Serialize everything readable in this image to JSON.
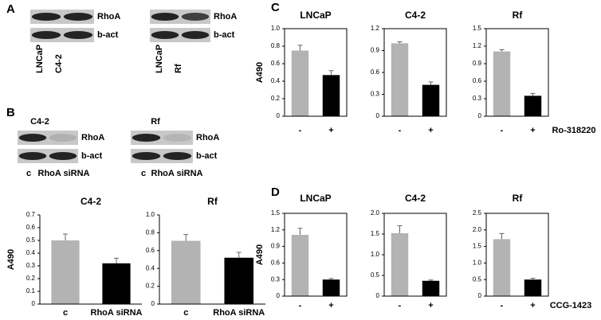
{
  "panel_labels": [
    "A",
    "B",
    "C",
    "D"
  ],
  "blots": [
    {
      "rows": [
        "RhoA",
        "b-act"
      ],
      "lanes": [
        "LNCaP",
        "C4-2"
      ]
    },
    {
      "rows": [
        "RhoA",
        "b-act"
      ],
      "lanes": [
        "LNCaP",
        "Rf"
      ]
    },
    {
      "title": "C4-2",
      "rows": [
        "RhoA",
        "b-act"
      ],
      "lanes": [
        "c",
        "RhoA siRNA"
      ]
    },
    {
      "title": "Rf",
      "rows": [
        "RhoA",
        "b-act"
      ],
      "lanes": [
        "c",
        "RhoA siRNA"
      ]
    }
  ],
  "chart_data": [
    {
      "type": "bar",
      "title": "C4-2",
      "ylabel": "A490",
      "categories": [
        "c",
        "RhoA siRNA"
      ],
      "values": [
        0.5,
        0.32
      ],
      "errors": [
        0.05,
        0.04
      ],
      "colors": [
        "#b3b3b3",
        "#000000"
      ],
      "ylim": [
        0,
        0.7
      ],
      "yticks": [
        0,
        0.1,
        0.2,
        0.3,
        0.4,
        0.5,
        0.6,
        0.7
      ],
      "box": false
    },
    {
      "type": "bar",
      "title": "Rf",
      "categories": [
        "c",
        "RhoA siRNA"
      ],
      "values": [
        0.71,
        0.52
      ],
      "errors": [
        0.07,
        0.06
      ],
      "colors": [
        "#b3b3b3",
        "#000000"
      ],
      "ylim": [
        0,
        1.0
      ],
      "yticks": [
        0,
        0.2,
        0.4,
        0.6,
        0.8,
        {
          "value": 1.0,
          "label": "1.0"
        }
      ],
      "box": false
    },
    {
      "type": "bar",
      "title": "LNCaP",
      "ylabel": "A490",
      "categories": [
        "-",
        "+"
      ],
      "values": [
        0.75,
        0.47
      ],
      "errors": [
        0.06,
        0.05
      ],
      "colors": [
        "#b3b3b3",
        "#000000"
      ],
      "ylim": [
        0,
        1.0
      ],
      "yticks": [
        0,
        0.2,
        0.4,
        0.6,
        0.8,
        {
          "value": 1.0,
          "label": "1.0"
        }
      ],
      "box": true
    },
    {
      "type": "bar",
      "title": "C4-2",
      "categories": [
        "-",
        "+"
      ],
      "values": [
        1.0,
        0.43
      ],
      "errors": [
        0.02,
        0.04
      ],
      "colors": [
        "#b3b3b3",
        "#000000"
      ],
      "ylim": [
        0,
        1.2
      ],
      "yticks": [
        0,
        0.3,
        0.6,
        0.9,
        1.2
      ],
      "box": true
    },
    {
      "type": "bar",
      "title": "Rf",
      "xlabel": "Ro-318220",
      "categories": [
        "-",
        "+"
      ],
      "values": [
        1.11,
        0.35
      ],
      "errors": [
        0.03,
        0.04
      ],
      "colors": [
        "#b3b3b3",
        "#000000"
      ],
      "ylim": [
        0,
        1.5
      ],
      "yticks": [
        0,
        0.3,
        0.6,
        0.9,
        1.2,
        1.5
      ],
      "box": true
    },
    {
      "type": "bar",
      "title": "LNCaP",
      "ylabel": "A490",
      "categories": [
        "-",
        "+"
      ],
      "values": [
        1.11,
        0.3
      ],
      "errors": [
        0.12,
        0.02
      ],
      "colors": [
        "#b3b3b3",
        "#000000"
      ],
      "ylim": [
        0,
        1.5
      ],
      "yticks": [
        0,
        0.3,
        0.6,
        0.9,
        1.2,
        1.5
      ],
      "box": true
    },
    {
      "type": "bar",
      "title": "C4-2",
      "categories": [
        "-",
        "+"
      ],
      "values": [
        1.52,
        0.37
      ],
      "errors": [
        0.18,
        0.02
      ],
      "colors": [
        "#b3b3b3",
        "#000000"
      ],
      "ylim": [
        0,
        2.0
      ],
      "yticks": [
        0,
        0.5,
        {
          "value": 1.0,
          "label": "1.0"
        },
        1.5,
        {
          "value": 2.0,
          "label": "2.0"
        }
      ],
      "box": true
    },
    {
      "type": "bar",
      "title": "Rf",
      "xlabel": "CCG-1423",
      "categories": [
        "-",
        "+"
      ],
      "values": [
        1.72,
        0.5
      ],
      "errors": [
        0.17,
        0.04
      ],
      "colors": [
        "#b3b3b3",
        "#000000"
      ],
      "ylim": [
        0,
        2.5
      ],
      "yticks": [
        0,
        0.5,
        {
          "value": 1.0,
          "label": "1.0"
        },
        1.5,
        {
          "value": 2.0,
          "label": "2.0"
        },
        2.5
      ],
      "box": true
    }
  ]
}
